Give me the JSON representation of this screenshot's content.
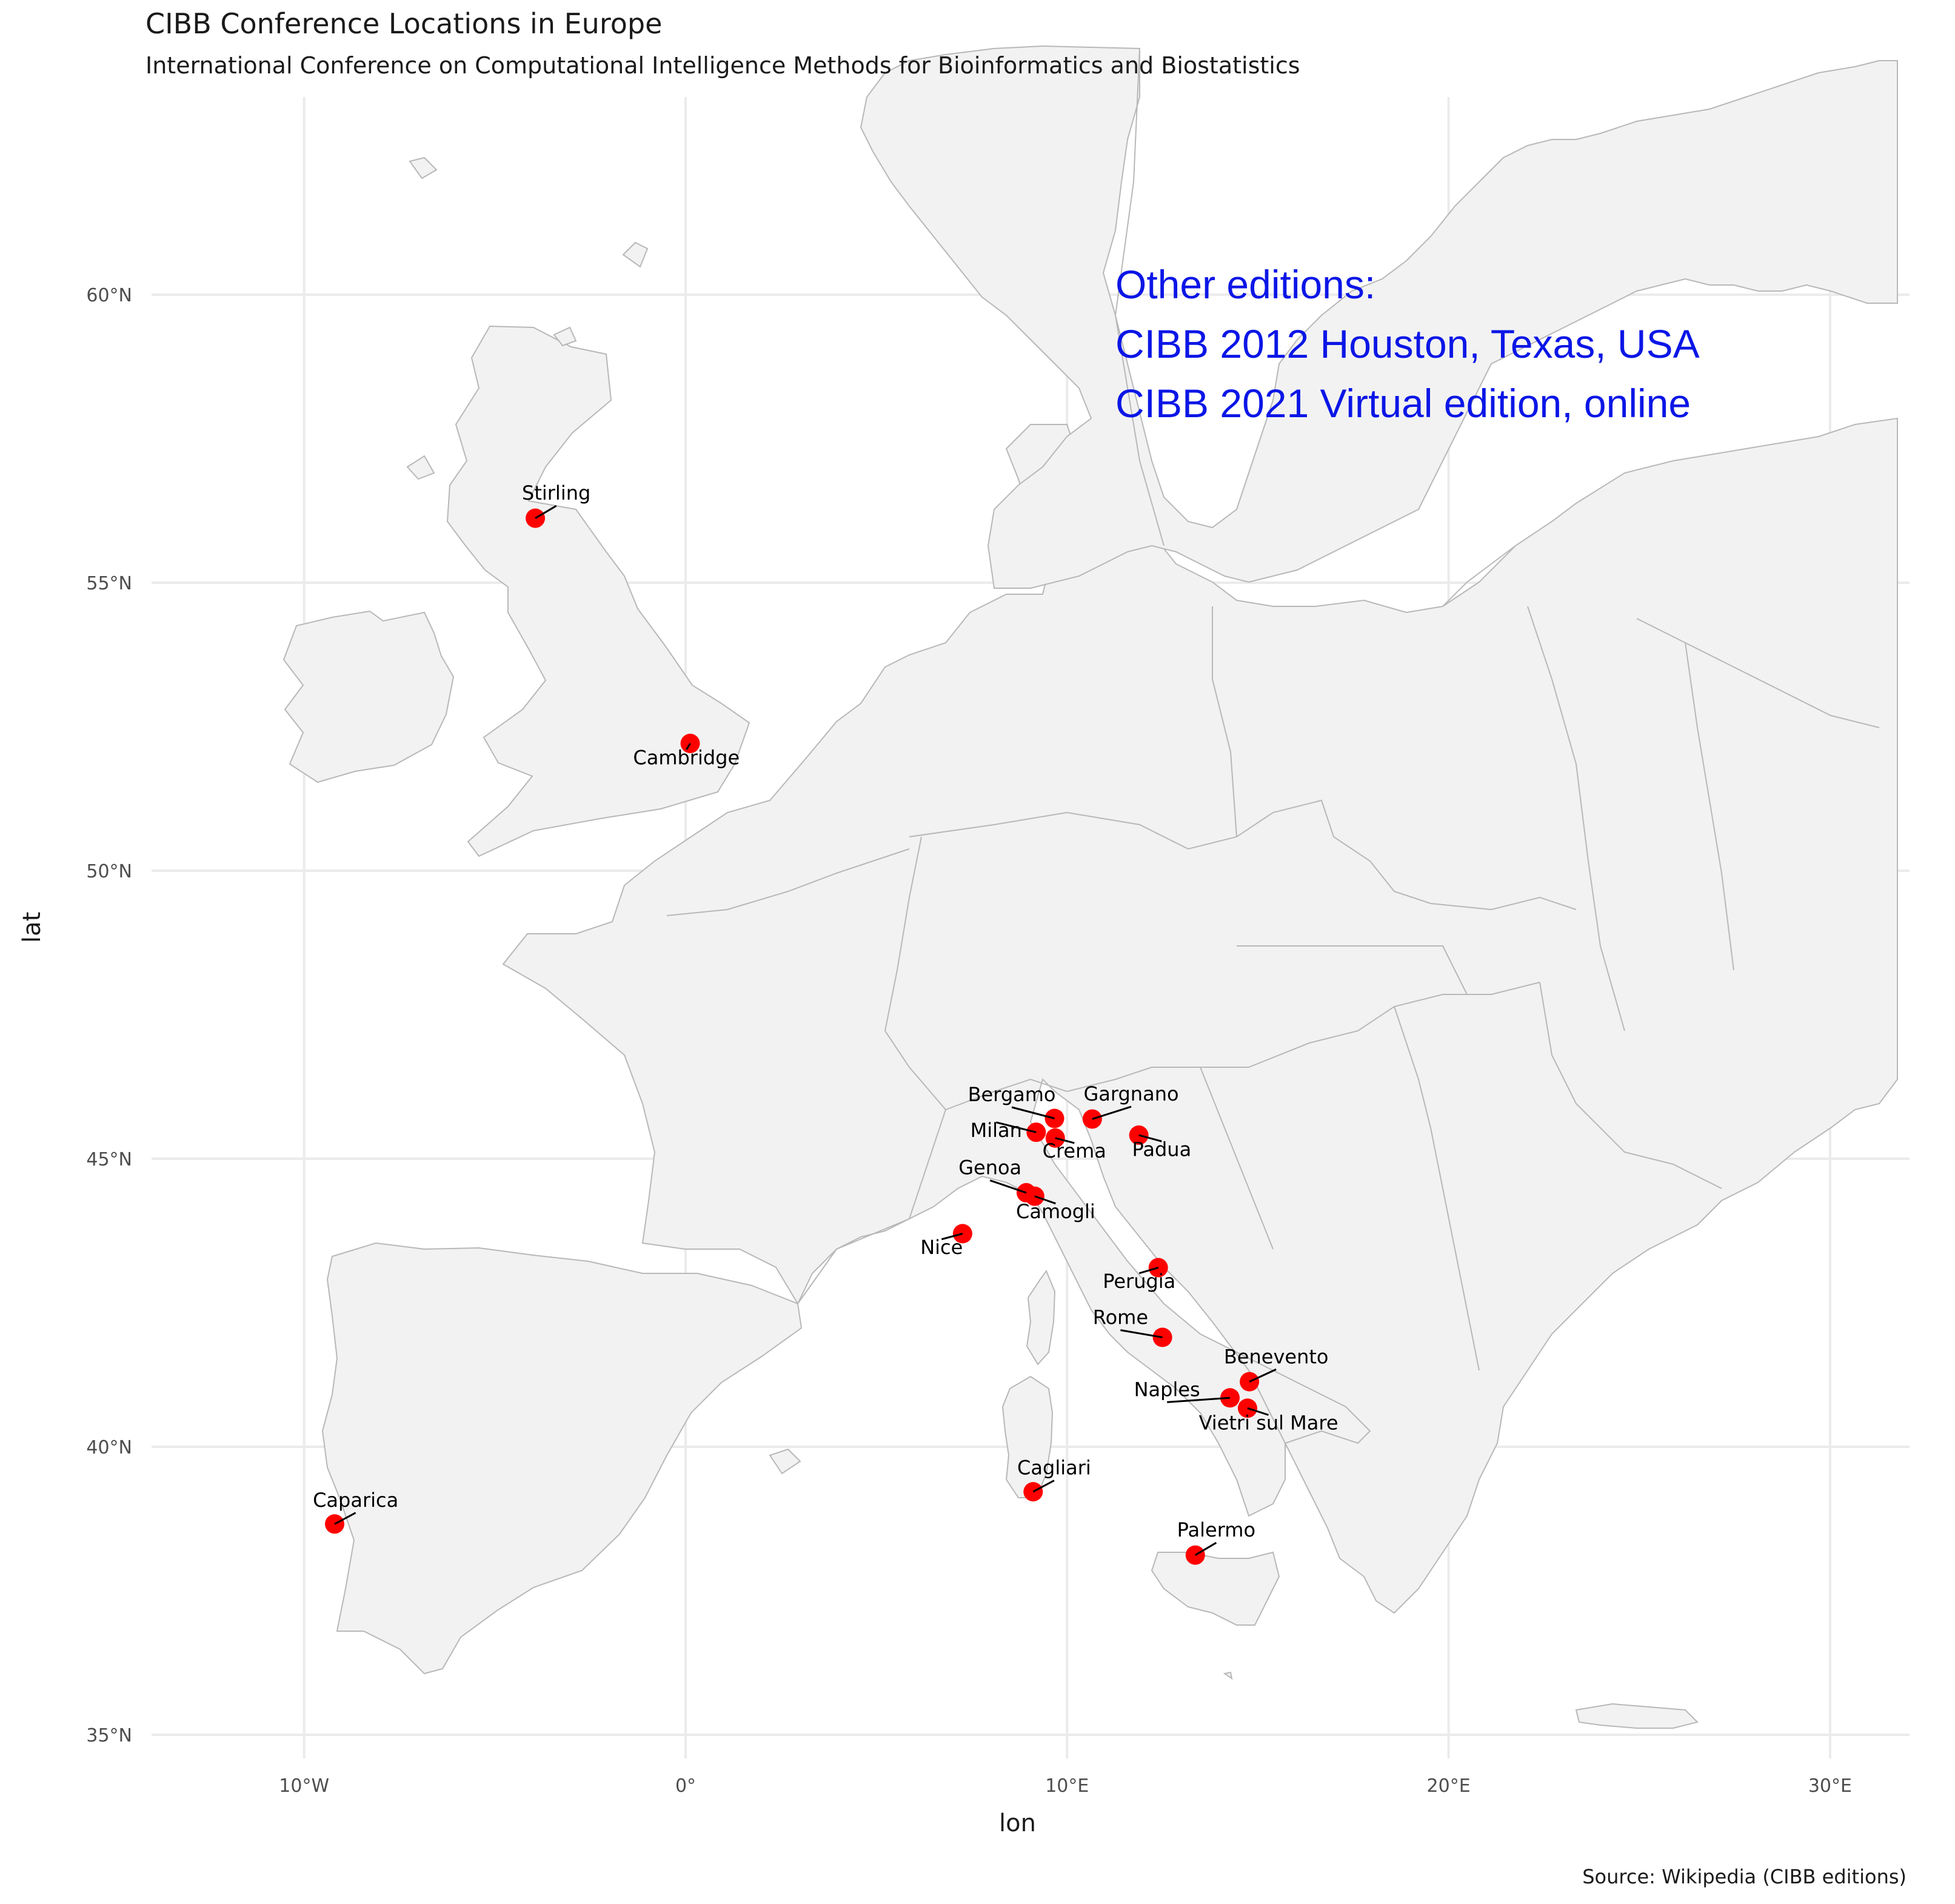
{
  "title": "CIBB Conference Locations in Europe",
  "subtitle": "International Conference on Computational Intelligence Methods for Bioinformatics and Biostatistics",
  "caption": "Source: Wikipedia (CIBB editions)",
  "annotation": {
    "lines": [
      "Other editions:",
      "CIBB 2012 Houston, Texas, USA",
      "CIBB 2021 Virtual edition, online"
    ]
  },
  "colors": {
    "land": "#f2f2f2",
    "border": "#b8b8b8",
    "grid": "#ebebeb",
    "point": "#ff0000",
    "annotation": "#0b16e6"
  },
  "chart_data": {
    "type": "scatter",
    "map_region": "Europe",
    "xlabel": "lon",
    "ylabel": "lat",
    "xlim": [
      -14,
      32
    ],
    "ylim": [
      34,
      64
    ],
    "x_ticks": [
      {
        "value": -10,
        "label": "10°W"
      },
      {
        "value": 0,
        "label": "0°"
      },
      {
        "value": 10,
        "label": "10°E"
      },
      {
        "value": 20,
        "label": "20°E"
      },
      {
        "value": 30,
        "label": "30°E"
      }
    ],
    "y_ticks": [
      {
        "value": 35,
        "label": "35°N"
      },
      {
        "value": 40,
        "label": "40°N"
      },
      {
        "value": 45,
        "label": "45°N"
      },
      {
        "value": 50,
        "label": "50°N"
      },
      {
        "value": 55,
        "label": "55°N"
      },
      {
        "value": 60,
        "label": "60°N"
      }
    ],
    "grid": true,
    "points": [
      {
        "label": "Stirling",
        "lon": -3.94,
        "lat": 56.12,
        "dx": 0.55,
        "dy": 0.32
      },
      {
        "label": "Cambridge",
        "lon": 0.12,
        "lat": 52.21,
        "dx": -0.1,
        "dy": -0.36
      },
      {
        "label": "Caparica",
        "lon": -9.2,
        "lat": 38.66,
        "dx": 0.55,
        "dy": 0.3
      },
      {
        "label": "Bergamo",
        "lon": 9.67,
        "lat": 45.7,
        "dx": -1.12,
        "dy": 0.3
      },
      {
        "label": "Gargnano",
        "lon": 10.66,
        "lat": 45.69,
        "dx": 1.02,
        "dy": 0.32
      },
      {
        "label": "Milan",
        "lon": 9.19,
        "lat": 45.46,
        "dx": -1.05,
        "dy": -0.08
      },
      {
        "label": "Crema",
        "lon": 9.69,
        "lat": 45.36,
        "dx": 0.5,
        "dy": -0.34
      },
      {
        "label": "Padua",
        "lon": 11.88,
        "lat": 45.41,
        "dx": 0.6,
        "dy": -0.36
      },
      {
        "label": "Genoa",
        "lon": 8.93,
        "lat": 44.41,
        "dx": -0.95,
        "dy": 0.32
      },
      {
        "label": "Camogli",
        "lon": 9.15,
        "lat": 44.35,
        "dx": 0.55,
        "dy": -0.38
      },
      {
        "label": "Nice",
        "lon": 7.26,
        "lat": 43.7,
        "dx": -0.55,
        "dy": -0.35
      },
      {
        "label": "Perugia",
        "lon": 12.39,
        "lat": 43.11,
        "dx": -0.5,
        "dy": -0.35
      },
      {
        "label": "Rome",
        "lon": 12.5,
        "lat": 41.9,
        "dx": -1.1,
        "dy": 0.23
      },
      {
        "label": "Benevento",
        "lon": 14.78,
        "lat": 41.13,
        "dx": 0.7,
        "dy": 0.32
      },
      {
        "label": "Naples",
        "lon": 14.27,
        "lat": 40.85,
        "dx": -1.65,
        "dy": 0.03
      },
      {
        "label": "Vietri sul Mare",
        "lon": 14.73,
        "lat": 40.67,
        "dx": 0.55,
        "dy": -0.37
      },
      {
        "label": "Cagliari",
        "lon": 9.11,
        "lat": 39.22,
        "dx": 0.55,
        "dy": 0.3
      },
      {
        "label": "Palermo",
        "lon": 13.36,
        "lat": 38.12,
        "dx": 0.55,
        "dy": 0.32
      }
    ]
  }
}
